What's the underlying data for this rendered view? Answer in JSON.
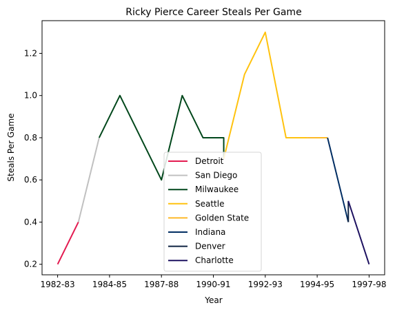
{
  "chart_data": {
    "type": "line",
    "title": "Ricky Pierce Career Steals Per Game",
    "xlabel": "Year",
    "ylabel": "Steals Per Game",
    "xlim": [
      -0.75,
      15.75
    ],
    "ylim": [
      0.15,
      1.355
    ],
    "x_ticks": [
      {
        "pos": 0,
        "label": "1982-83"
      },
      {
        "pos": 2.5,
        "label": "1984-85"
      },
      {
        "pos": 5,
        "label": "1987-88"
      },
      {
        "pos": 7.5,
        "label": "1990-91"
      },
      {
        "pos": 10,
        "label": "1992-93"
      },
      {
        "pos": 12.5,
        "label": "1994-95"
      },
      {
        "pos": 15,
        "label": "1997-98"
      }
    ],
    "y_ticks": [
      {
        "value": 0.2,
        "label": "0.2"
      },
      {
        "value": 0.4,
        "label": "0.4"
      },
      {
        "value": 0.6,
        "label": "0.6"
      },
      {
        "value": 0.8,
        "label": "0.8"
      },
      {
        "value": 1.0,
        "label": "1.0"
      },
      {
        "value": 1.2,
        "label": "1.2"
      }
    ],
    "grid": false,
    "legend_placement": "lower-center",
    "series": [
      {
        "name": "Detroit",
        "color": "#e31a50",
        "points": [
          [
            0,
            0.2
          ],
          [
            1,
            0.4
          ]
        ]
      },
      {
        "name": "San Diego",
        "color": "#c0c0c0",
        "points": [
          [
            1,
            0.4
          ],
          [
            2,
            0.8
          ]
        ]
      },
      {
        "name": "Milwaukee",
        "color": "#00471b",
        "points": [
          [
            2,
            0.8
          ],
          [
            3,
            1.0
          ],
          [
            5,
            0.6
          ],
          [
            6,
            1.0
          ],
          [
            7,
            0.8
          ],
          [
            8,
            0.8
          ],
          [
            8,
            0.7
          ]
        ]
      },
      {
        "name": "Seattle",
        "color": "#ffc20e",
        "points": [
          [
            8,
            0.7
          ],
          [
            9,
            1.1
          ],
          [
            10,
            1.3
          ],
          [
            11,
            0.8
          ],
          [
            12,
            0.8
          ]
        ]
      },
      {
        "name": "Golden State",
        "color": "#fdb927",
        "points": [
          [
            12,
            0.8
          ],
          [
            13,
            0.8
          ]
        ]
      },
      {
        "name": "Indiana",
        "color": "#002d62",
        "points": [
          [
            13,
            0.8
          ],
          [
            14,
            0.4
          ]
        ]
      },
      {
        "name": "Denver",
        "color": "#0e2240",
        "points": [
          [
            14,
            0.4
          ],
          [
            14,
            0.5
          ]
        ]
      },
      {
        "name": "Charlotte",
        "color": "#1d1160",
        "points": [
          [
            14,
            0.5
          ],
          [
            15,
            0.2
          ]
        ]
      }
    ]
  }
}
